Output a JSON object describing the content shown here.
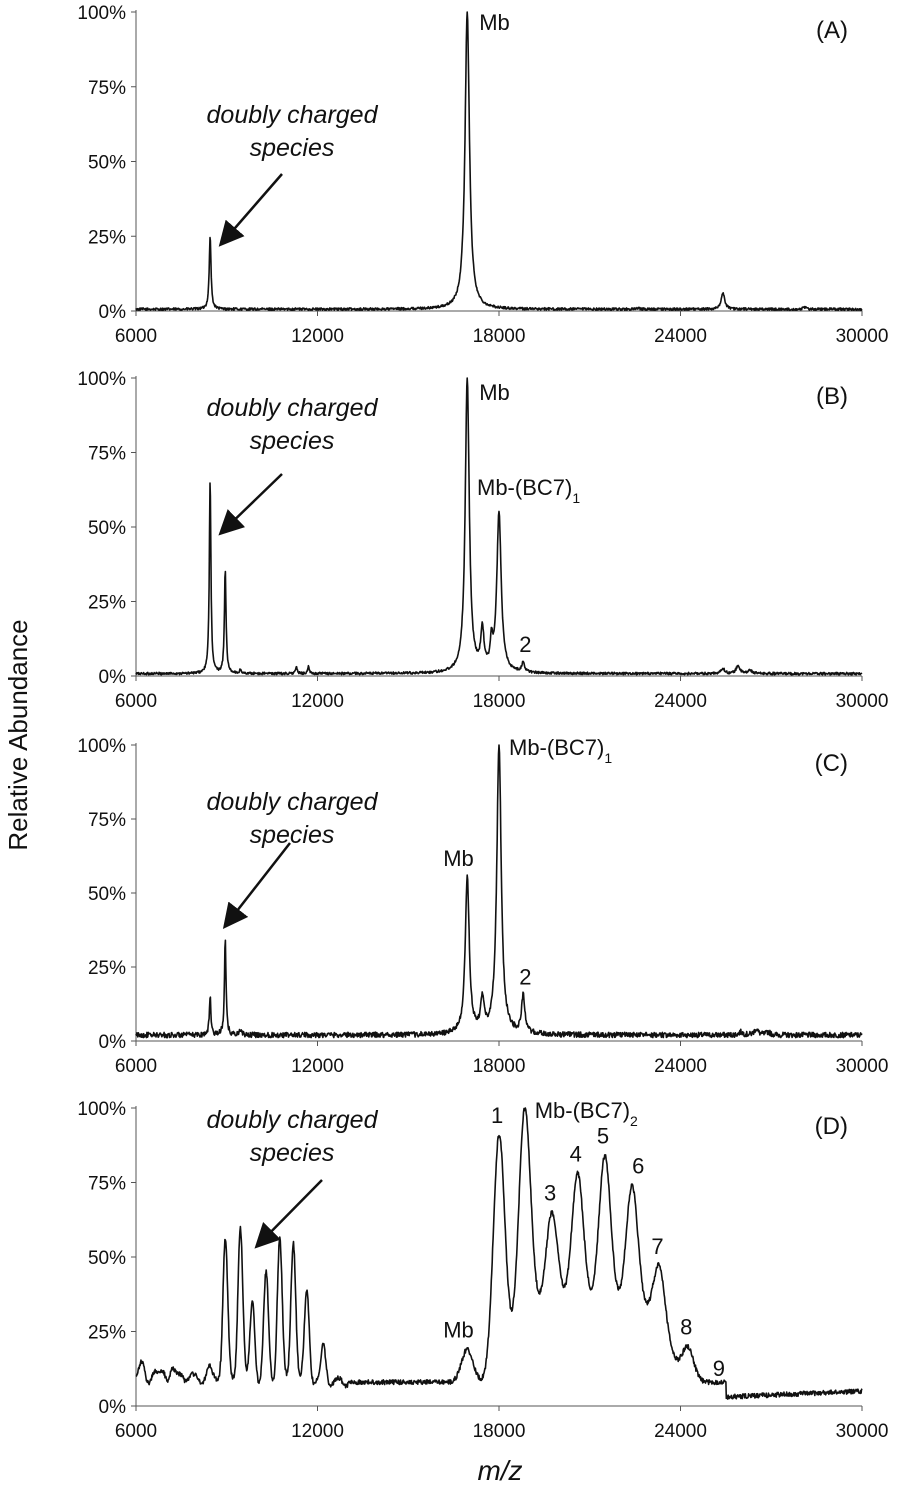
{
  "figure": {
    "ylabel": "Relative Abundance",
    "xlabel": "m/z"
  },
  "chart_data": [
    {
      "type": "line",
      "panel_label": "(A)",
      "xlim": [
        6000,
        30000
      ],
      "ylim": [
        0,
        100
      ],
      "x_ticks": [
        "6000",
        "12000",
        "18000",
        "24000",
        "30000"
      ],
      "y_ticks": [
        "0%",
        "25%",
        "50%",
        "75%",
        "100%"
      ],
      "baseline": 0.6,
      "peaks": [
        {
          "x": 8450,
          "y": 25,
          "w": 45
        },
        {
          "x": 11300,
          "y": 0.8,
          "w": 60
        },
        {
          "x": 14000,
          "y": 0.5,
          "w": 80
        },
        {
          "x": 16950,
          "y": 100,
          "w": 110
        },
        {
          "x": 22600,
          "y": 0.9,
          "w": 60
        },
        {
          "x": 25400,
          "y": 6,
          "w": 90
        },
        {
          "x": 28100,
          "y": 1.2,
          "w": 80
        }
      ],
      "annotations": [
        {
          "text": "Mb",
          "x": 16950,
          "y": 100
        },
        {
          "text": "doubly charged",
          "x": 8450,
          "y": 25
        },
        {
          "text": "species",
          "x": 8450,
          "y": 25
        }
      ]
    },
    {
      "type": "line",
      "panel_label": "(B)",
      "xlim": [
        6000,
        30000
      ],
      "ylim": [
        0,
        100
      ],
      "x_ticks": [
        "6000",
        "12000",
        "18000",
        "24000",
        "30000"
      ],
      "y_ticks": [
        "0%",
        "25%",
        "50%",
        "75%",
        "100%"
      ],
      "baseline": 0.8,
      "peaks": [
        {
          "x": 8450,
          "y": 66,
          "w": 40
        },
        {
          "x": 8950,
          "y": 36,
          "w": 40
        },
        {
          "x": 9450,
          "y": 2,
          "w": 40
        },
        {
          "x": 11300,
          "y": 3,
          "w": 40
        },
        {
          "x": 11700,
          "y": 3,
          "w": 40
        },
        {
          "x": 16950,
          "y": 100,
          "w": 100
        },
        {
          "x": 17450,
          "y": 14,
          "w": 80
        },
        {
          "x": 17750,
          "y": 9,
          "w": 60
        },
        {
          "x": 18000,
          "y": 54,
          "w": 110
        },
        {
          "x": 18800,
          "y": 4,
          "w": 70
        },
        {
          "x": 25400,
          "y": 2.5,
          "w": 90
        },
        {
          "x": 25900,
          "y": 3.5,
          "w": 90
        },
        {
          "x": 26300,
          "y": 2,
          "w": 90
        }
      ],
      "annotations": [
        {
          "text": "Mb",
          "x": 16950,
          "y": 100
        },
        {
          "text": "Mb-(BC7)",
          "sub": "1",
          "x": 18000,
          "y": 54
        },
        {
          "text": "2",
          "x": 18800,
          "y": 4
        },
        {
          "text": "doubly charged",
          "x": 8450,
          "y": 66
        },
        {
          "text": "species",
          "x": 8450,
          "y": 66
        }
      ]
    },
    {
      "type": "line",
      "panel_label": "(C)",
      "xlim": [
        6000,
        30000
      ],
      "ylim": [
        0,
        100
      ],
      "x_ticks": [
        "6000",
        "12000",
        "18000",
        "24000",
        "30000"
      ],
      "y_ticks": [
        "0%",
        "25%",
        "50%",
        "75%",
        "100%"
      ],
      "baseline": 2,
      "peaks": [
        {
          "x": 8450,
          "y": 15,
          "w": 40
        },
        {
          "x": 8950,
          "y": 34,
          "w": 40
        },
        {
          "x": 9450,
          "y": 4,
          "w": 40
        },
        {
          "x": 16950,
          "y": 55,
          "w": 100
        },
        {
          "x": 17450,
          "y": 13,
          "w": 80
        },
        {
          "x": 18000,
          "y": 100,
          "w": 110
        },
        {
          "x": 18800,
          "y": 15,
          "w": 80
        },
        {
          "x": 26000,
          "y": 3,
          "w": 100
        },
        {
          "x": 26500,
          "y": 4,
          "w": 100
        },
        {
          "x": 26900,
          "y": 3,
          "w": 100
        }
      ],
      "annotations": [
        {
          "text": "Mb",
          "x": 16950,
          "y": 55
        },
        {
          "text": "Mb-(BC7)",
          "sub": "1",
          "x": 18000,
          "y": 100
        },
        {
          "text": "2",
          "x": 18800,
          "y": 15
        },
        {
          "text": "doubly charged",
          "x": 8950,
          "y": 34
        },
        {
          "text": "species",
          "x": 8950,
          "y": 34
        }
      ]
    },
    {
      "type": "line",
      "panel_label": "(D)",
      "xlim": [
        6000,
        30000
      ],
      "ylim": [
        0,
        100
      ],
      "x_ticks": [
        "6000",
        "12000",
        "18000",
        "24000",
        "30000"
      ],
      "y_ticks": [
        "0%",
        "25%",
        "50%",
        "75%",
        "100%"
      ],
      "peaks": [
        {
          "x": 6200,
          "y": 13
        },
        {
          "x": 6600,
          "y": 10
        },
        {
          "x": 6900,
          "y": 11
        },
        {
          "x": 7200,
          "y": 11
        },
        {
          "x": 7500,
          "y": 10
        },
        {
          "x": 7800,
          "y": 9
        },
        {
          "x": 8400,
          "y": 12
        },
        {
          "x": 8950,
          "y": 56
        },
        {
          "x": 9450,
          "y": 61
        },
        {
          "x": 9850,
          "y": 35
        },
        {
          "x": 10300,
          "y": 44
        },
        {
          "x": 10750,
          "y": 56
        },
        {
          "x": 11200,
          "y": 56
        },
        {
          "x": 11650,
          "y": 39
        },
        {
          "x": 12200,
          "y": 20
        },
        {
          "x": 16950,
          "y": 19
        },
        {
          "x": 18000,
          "y": 91
        },
        {
          "x": 18850,
          "y": 100
        },
        {
          "x": 19750,
          "y": 65
        },
        {
          "x": 20600,
          "y": 78
        },
        {
          "x": 21500,
          "y": 84
        },
        {
          "x": 22400,
          "y": 74
        },
        {
          "x": 23300,
          "y": 47
        },
        {
          "x": 24250,
          "y": 20
        },
        {
          "x": 25200,
          "y": 6
        }
      ],
      "annotations": [
        {
          "text": "Mb",
          "x": 16950,
          "y": 19
        },
        {
          "text": "1",
          "x": 18000,
          "y": 91
        },
        {
          "text": "Mb-(BC7)",
          "sub": "2",
          "x": 18850,
          "y": 100
        },
        {
          "text": "3",
          "x": 19750,
          "y": 65
        },
        {
          "text": "4",
          "x": 20600,
          "y": 78
        },
        {
          "text": "5",
          "x": 21500,
          "y": 84
        },
        {
          "text": "6",
          "x": 22400,
          "y": 74
        },
        {
          "text": "7",
          "x": 23300,
          "y": 47
        },
        {
          "text": "8",
          "x": 24250,
          "y": 20
        },
        {
          "text": "9",
          "x": 25200,
          "y": 6
        },
        {
          "text": "doubly charged",
          "x": 10300,
          "y": 56
        },
        {
          "text": "species",
          "x": 10300,
          "y": 56
        }
      ]
    }
  ]
}
